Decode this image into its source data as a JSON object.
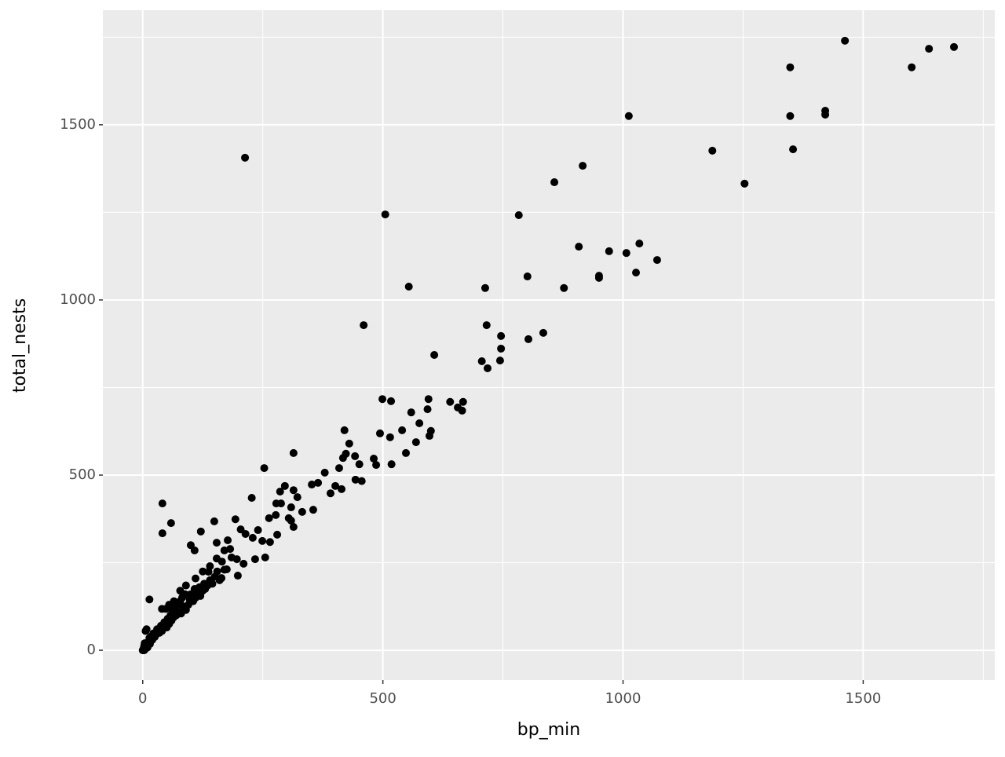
{
  "chart_data": {
    "type": "scatter",
    "x_label": "bp_min",
    "y_label": "total_nests",
    "color": "#000000",
    "xlim": [
      -83,
      1774
    ],
    "ylim": [
      -85,
      1827
    ],
    "xticks": [
      0,
      500,
      1000,
      1500
    ],
    "yticks": [
      0,
      500,
      1000,
      1500
    ],
    "xminor": [
      250,
      750,
      1250,
      1750
    ],
    "yminor": [
      250,
      750,
      1250,
      1750
    ],
    "grid": true,
    "x": [
      1689,
      1637,
      1601,
      1462,
      1348,
      1348,
      1354,
      1421,
      1421,
      1186,
      1253,
      1012,
      213,
      505,
      916,
      857,
      783,
      554,
      908,
      971,
      1007,
      1034,
      1071,
      1027,
      950,
      950,
      801,
      877,
      713,
      460,
      716,
      746,
      746,
      834,
      803,
      607,
      706,
      744,
      718,
      499,
      517,
      595,
      640,
      667,
      656,
      665,
      593,
      559,
      576,
      540,
      600,
      597,
      494,
      515,
      569,
      548,
      518,
      486,
      481,
      420,
      430,
      423,
      442,
      451,
      456,
      443,
      417,
      409,
      379,
      314,
      253,
      365,
      401,
      414,
      391,
      352,
      314,
      296,
      286,
      355,
      332,
      322,
      309,
      288,
      278,
      227,
      193,
      149,
      41,
      59,
      41,
      121,
      100,
      108,
      154,
      177,
      182,
      204,
      214,
      229,
      240,
      263,
      277,
      304,
      314,
      309,
      280,
      249,
      265,
      255,
      234,
      210,
      154,
      165,
      196,
      175,
      198,
      164,
      137,
      0,
      2,
      3,
      5,
      4,
      6,
      8,
      10,
      12,
      15,
      14,
      18,
      20,
      22,
      25,
      28,
      30,
      32,
      35,
      38,
      40,
      42,
      45,
      48,
      50,
      52,
      55,
      58,
      60,
      62,
      65,
      68,
      70,
      72,
      75,
      78,
      80,
      82,
      85,
      88,
      90,
      95,
      98,
      100,
      105,
      108,
      110,
      115,
      118,
      120,
      125,
      128,
      130,
      135,
      140,
      145,
      150,
      155,
      160,
      14,
      40,
      48,
      55,
      65,
      78,
      90,
      110,
      125,
      140,
      170,
      185,
      170,
      3,
      1,
      6,
      9
    ],
    "y": [
      1722,
      1717,
      1664,
      1740,
      1664,
      1525,
      1430,
      1540,
      1529,
      1426,
      1332,
      1525,
      1406,
      1244,
      1383,
      1336,
      1242,
      1038,
      1152,
      1139,
      1134,
      1161,
      1114,
      1078,
      1069,
      1063,
      1067,
      1034,
      1034,
      928,
      928,
      897,
      861,
      906,
      888,
      843,
      825,
      827,
      805,
      717,
      711,
      717,
      709,
      709,
      693,
      684,
      688,
      679,
      648,
      628,
      626,
      612,
      619,
      608,
      594,
      563,
      531,
      529,
      547,
      628,
      590,
      561,
      554,
      531,
      483,
      487,
      549,
      520,
      507,
      563,
      520,
      478,
      469,
      460,
      448,
      473,
      457,
      469,
      453,
      401,
      395,
      437,
      408,
      419,
      419,
      435,
      374,
      368,
      419,
      363,
      334,
      339,
      300,
      285,
      307,
      314,
      289,
      345,
      332,
      321,
      343,
      377,
      386,
      377,
      352,
      370,
      330,
      312,
      309,
      265,
      260,
      247,
      262,
      253,
      260,
      231,
      213,
      206,
      224,
      0,
      5,
      12,
      3,
      20,
      55,
      60,
      8,
      25,
      18,
      35,
      40,
      30,
      48,
      38,
      45,
      60,
      52,
      50,
      70,
      55,
      62,
      80,
      70,
      65,
      90,
      75,
      100,
      85,
      115,
      95,
      120,
      100,
      130,
      110,
      140,
      105,
      150,
      125,
      160,
      115,
      130,
      145,
      160,
      140,
      175,
      150,
      165,
      180,
      155,
      170,
      190,
      175,
      185,
      200,
      190,
      210,
      225,
      200,
      145,
      118,
      118,
      130,
      140,
      170,
      185,
      205,
      225,
      240,
      230,
      265,
      285,
      0,
      2,
      10,
      15
    ]
  }
}
